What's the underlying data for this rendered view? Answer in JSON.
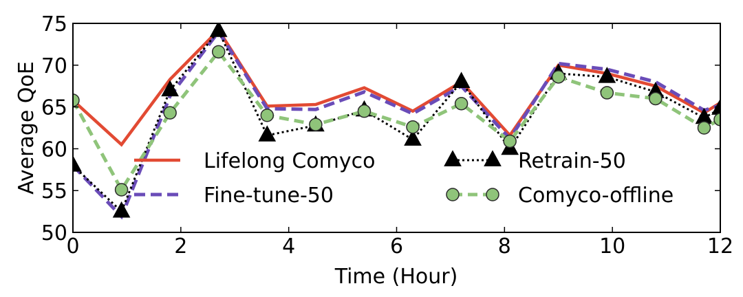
{
  "chart_data": {
    "type": "line",
    "title": "",
    "xlabel": "Time (Hour)",
    "ylabel": "Average QoE",
    "xlim": [
      0,
      12
    ],
    "ylim": [
      50,
      75
    ],
    "xticks": [
      0,
      2,
      4,
      6,
      8,
      10,
      12
    ],
    "yticks": [
      50,
      55,
      60,
      65,
      70,
      75
    ],
    "grid": false,
    "legend_position": "center",
    "x": [
      0,
      0.9,
      1.8,
      2.7,
      3.6,
      4.5,
      5.4,
      6.3,
      7.2,
      8.1,
      9.0,
      9.9,
      10.8,
      11.7,
      12
    ],
    "series": [
      {
        "name": "Lifelong Comyco",
        "color": "#e24a33",
        "style": "solid",
        "marker": "none",
        "values": [
          65.8,
          60.5,
          68.3,
          74.2,
          65.1,
          65.3,
          67.3,
          64.5,
          68.0,
          61.6,
          70.0,
          69.0,
          67.5,
          64.3,
          65.5
        ]
      },
      {
        "name": "Fine-tune-50",
        "color": "#6a4cb8",
        "style": "dashed",
        "marker": "none",
        "values": [
          58.0,
          51.9,
          66.3,
          74.0,
          64.8,
          64.7,
          66.8,
          64.2,
          67.5,
          61.2,
          70.2,
          69.5,
          68.0,
          64.6,
          65.2
        ]
      },
      {
        "name": "Retrain-50",
        "color": "#000000",
        "style": "dotted",
        "marker": "triangle",
        "values": [
          58.0,
          52.5,
          67.0,
          74.1,
          61.6,
          62.8,
          64.6,
          61.1,
          68.0,
          60.0,
          69.0,
          68.6,
          66.8,
          63.7,
          64.8
        ]
      },
      {
        "name": "Comyco-offline",
        "color": "#8fc47a",
        "style": "dashed",
        "marker": "circle",
        "values": [
          65.8,
          55.1,
          64.3,
          71.6,
          64.0,
          62.9,
          64.5,
          62.6,
          65.4,
          60.9,
          68.6,
          66.7,
          66.0,
          62.5,
          63.5
        ]
      }
    ]
  }
}
